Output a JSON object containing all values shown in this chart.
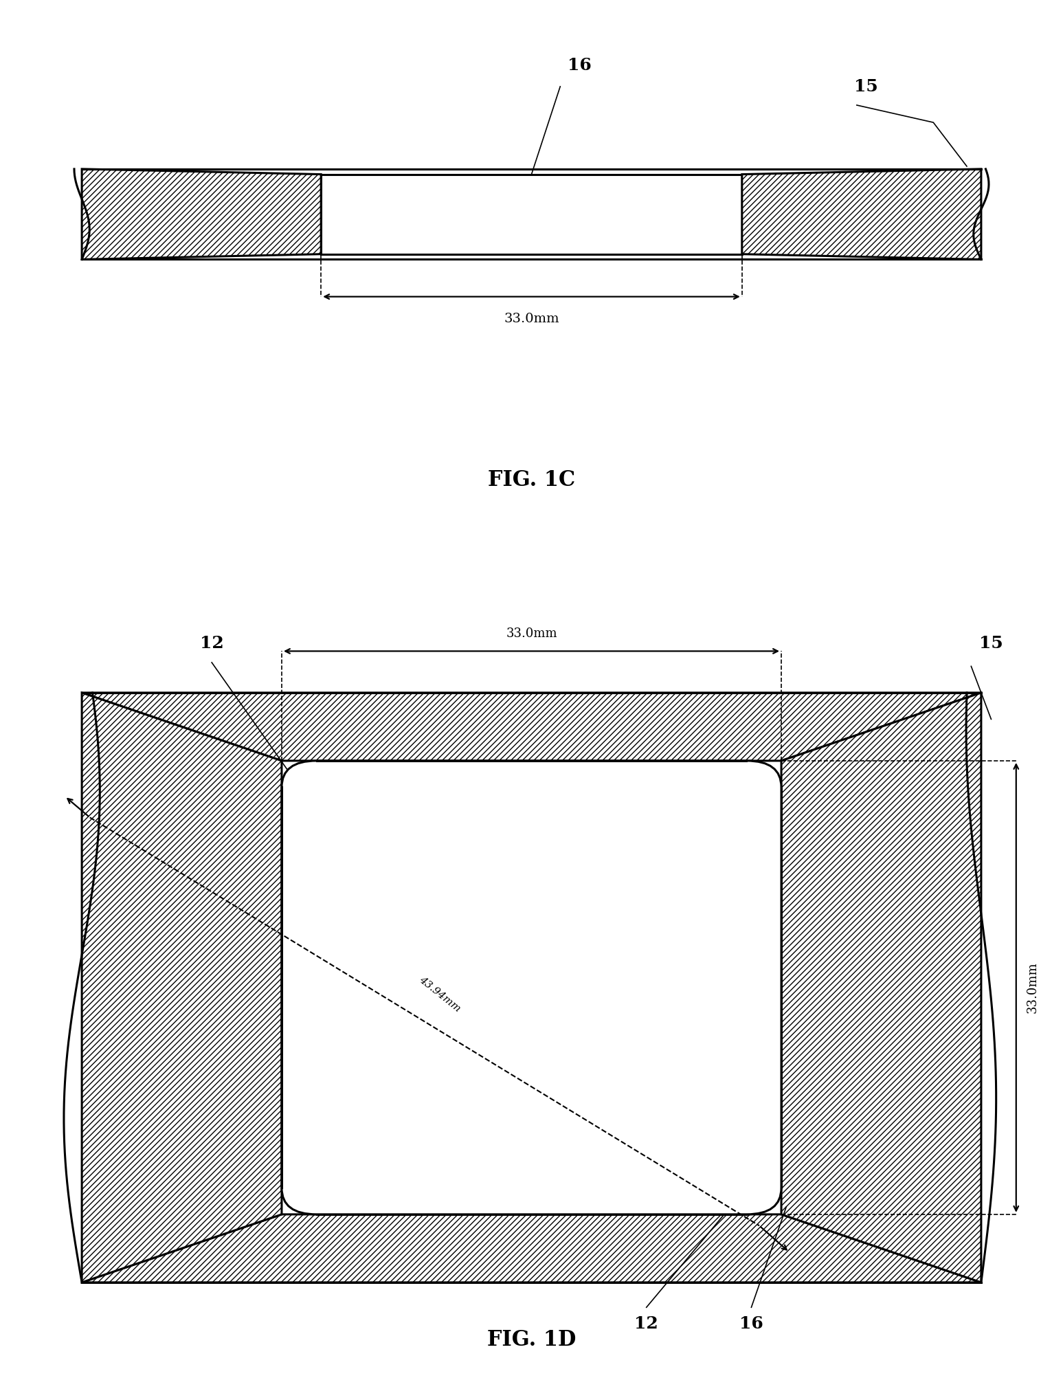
{
  "bg_color": "#ffffff",
  "line_color": "#000000",
  "fig1c": {
    "label": "FIG. 1C",
    "label16": "16",
    "label15": "15",
    "dim_label": "33.0mm"
  },
  "fig1d": {
    "label": "FIG. 1D",
    "label12_tl": "12",
    "label15": "15",
    "label12_br": "12",
    "label16": "16",
    "dim_horiz": "33.0mm",
    "dim_vert": "33.0mm",
    "dim_diag": "43.94mm"
  }
}
